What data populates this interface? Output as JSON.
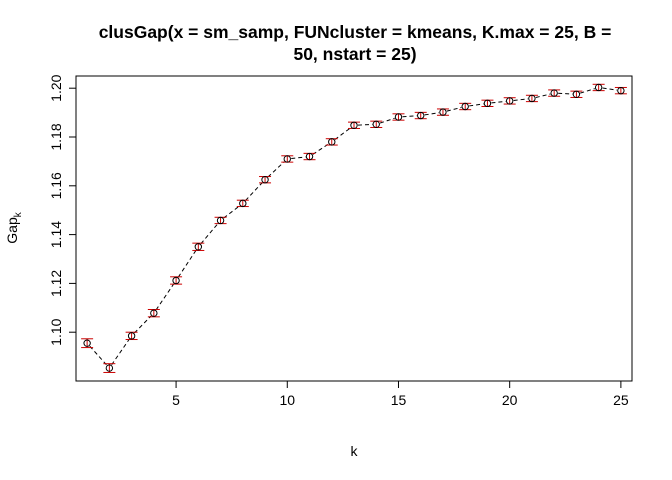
{
  "chart_data": {
    "type": "line",
    "title": [
      "clusGap(x = sm_samp, FUNcluster = kmeans, K.max = 25, B =",
      "50, nstart = 25)"
    ],
    "xlabel": "k",
    "ylabel": "Gap",
    "ylabel_subscript": "k",
    "xlim": [
      0.5,
      25.5
    ],
    "ylim": [
      1.08,
      1.205
    ],
    "x_ticks": [
      5,
      10,
      15,
      20,
      25
    ],
    "y_ticks": [
      1.1,
      1.12,
      1.14,
      1.16,
      1.18,
      1.2
    ],
    "y_tick_labels": [
      "1.10",
      "1.12",
      "1.14",
      "1.16",
      "1.18",
      "1.20"
    ],
    "grid": false,
    "line_style": "dashed",
    "point_color": "#000000",
    "errorbar_color": "#cc0000",
    "series": [
      {
        "x": [
          1,
          2,
          3,
          4,
          5,
          6,
          7,
          8,
          9,
          10,
          11,
          12,
          13,
          14,
          15,
          16,
          17,
          18,
          19,
          20,
          21,
          22,
          23,
          24,
          25
        ],
        "values": [
          1.0955,
          1.0853,
          1.0985,
          1.1078,
          1.1212,
          1.135,
          1.1458,
          1.1528,
          1.1625,
          1.171,
          1.172,
          1.178,
          1.1848,
          1.1852,
          1.1882,
          1.1888,
          1.1902,
          1.1925,
          1.1938,
          1.1948,
          1.1958,
          1.198,
          1.1975,
          1.2003,
          1.199
        ],
        "se": [
          0.0018,
          0.0018,
          0.0015,
          0.0015,
          0.0015,
          0.0015,
          0.0013,
          0.0013,
          0.0013,
          0.0013,
          0.0013,
          0.0013,
          0.0013,
          0.0013,
          0.0013,
          0.0013,
          0.0013,
          0.0013,
          0.0013,
          0.0013,
          0.0013,
          0.0013,
          0.0013,
          0.0013,
          0.0013
        ]
      }
    ]
  }
}
